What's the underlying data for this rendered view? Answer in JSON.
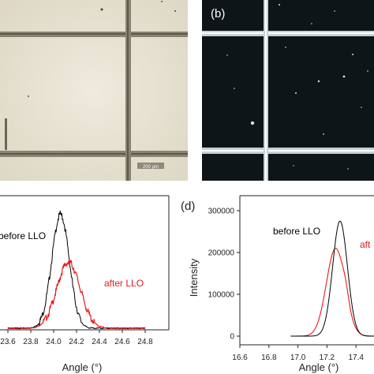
{
  "panels": {
    "b_label": "(b)",
    "d_label": "(d)",
    "scale_bar_text": "200 μm"
  },
  "chart_data": [
    {
      "type": "line",
      "panel": "c",
      "xlabel": "Angle (°)",
      "ylabel": "",
      "xlim": [
        23.6,
        24.8
      ],
      "xticks": [
        "23.6",
        "23.8",
        "24.0",
        "24.2",
        "24.4",
        "24.6",
        "24.8"
      ],
      "series": [
        {
          "name": "before LLO",
          "color": "#000000",
          "center": 24.06,
          "fwhm": 0.18,
          "peak": 1.0
        },
        {
          "name": "after LLO",
          "color": "#e8191b",
          "center": 24.13,
          "fwhm": 0.24,
          "peak": 0.58
        }
      ]
    },
    {
      "type": "line",
      "panel": "d",
      "xlabel": "Angle (°)",
      "ylabel": "Intensity",
      "xlim": [
        16.6,
        17.6
      ],
      "ylim": [
        -20000,
        310000
      ],
      "xticks": [
        "16.6",
        "16.8",
        "17.0",
        "17.2",
        "17.4"
      ],
      "yticks": [
        "0",
        "100000",
        "200000",
        "300000"
      ],
      "series": [
        {
          "name": "before LLO",
          "color": "#000000",
          "center": 17.29,
          "fwhm": 0.12,
          "peak": 275000
        },
        {
          "name": "after LLO",
          "label_visible": "aft",
          "color": "#e8191b",
          "center": 17.26,
          "fwhm": 0.15,
          "peak": 210000
        }
      ]
    }
  ]
}
